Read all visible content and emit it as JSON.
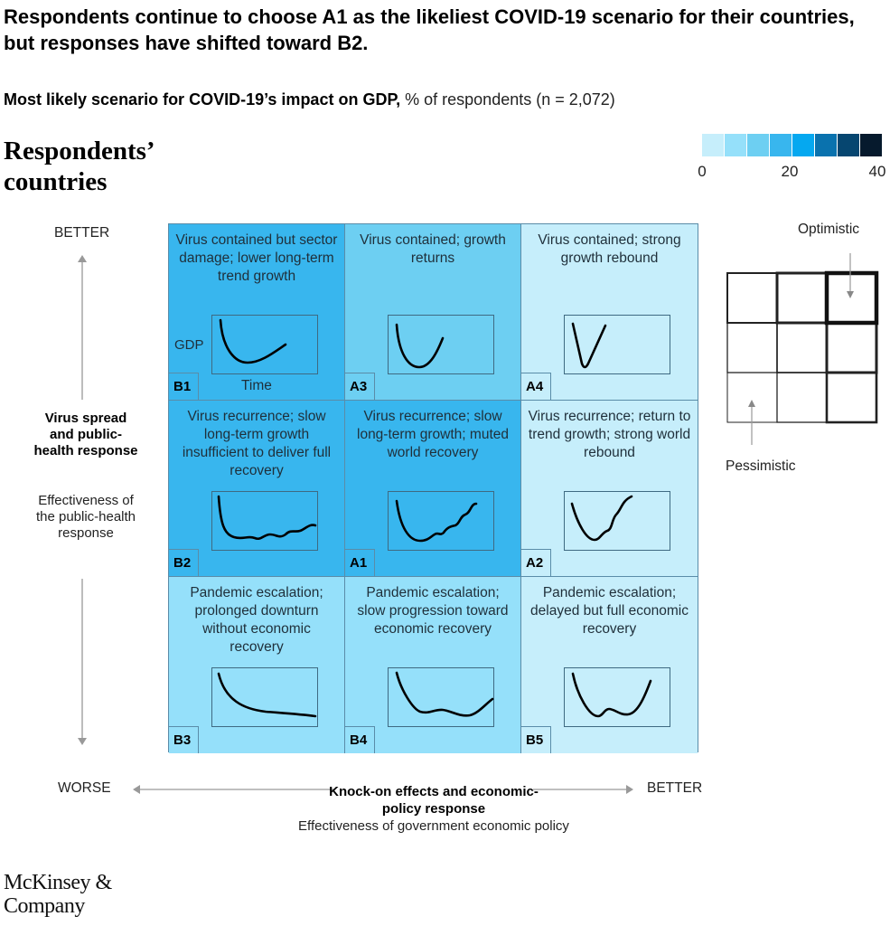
{
  "title": "Respondents continue to choose A1 as the likeliest COVID-19 scenario for their countries, but responses have shifted toward B2.",
  "subtitle_bold": "Most likely scenario for COVID-19’s impact on GDP,",
  "subtitle_rest": " % of respondents (n = 2,072)",
  "section_heading": "Respondents’ countries",
  "chart_data": {
    "type": "heatmap",
    "legend": {
      "range": [
        0,
        40
      ],
      "tick_labels": [
        "0",
        "20",
        "40"
      ],
      "bins": [
        [
          0,
          5
        ],
        [
          5,
          10
        ],
        [
          10,
          15
        ],
        [
          15,
          20
        ],
        [
          20,
          25
        ],
        [
          25,
          30
        ],
        [
          30,
          35
        ],
        [
          35,
          40
        ]
      ],
      "colors": [
        "#c6eefb",
        "#95e0fa",
        "#6dcff2",
        "#38b6ee",
        "#05a8f0",
        "#0a72ae",
        "#064670",
        "#061a2d"
      ]
    },
    "y_axis": {
      "top_label": "BETTER",
      "bottom_label": "WORSE",
      "title": "Virus spread and public-health response",
      "subtitle": "Effectiveness of the public-health response"
    },
    "x_axis": {
      "left_label": "WORSE",
      "right_label": "BETTER",
      "title": "Knock-on effects and economic-policy response",
      "subtitle": "Effectiveness of government economic policy"
    },
    "sparkline_axis_labels": {
      "y": "GDP",
      "x": "Time"
    },
    "cells": [
      {
        "id": "B1",
        "row": 0,
        "col": 0,
        "text": "Virus contained but sector damage; lower long-term trend growth",
        "value_bin": [
          15,
          20
        ],
        "color": "#38b6ee",
        "curve": "B1"
      },
      {
        "id": "A3",
        "row": 0,
        "col": 1,
        "text": "Virus contained; growth returns",
        "value_bin": [
          10,
          15
        ],
        "color": "#6dcff2",
        "curve": "A3"
      },
      {
        "id": "A4",
        "row": 0,
        "col": 2,
        "text": "Virus contained; strong growth rebound",
        "value_bin": [
          0,
          5
        ],
        "color": "#c6eefb",
        "curve": "A4"
      },
      {
        "id": "B2",
        "row": 1,
        "col": 0,
        "text": "Virus recurrence; slow long-term growth insufficient to deliver full recovery",
        "value_bin": [
          15,
          20
        ],
        "color": "#38b6ee",
        "curve": "B2"
      },
      {
        "id": "A1",
        "row": 1,
        "col": 1,
        "text": "Virus recurrence; slow long-term growth; muted world recovery",
        "value_bin": [
          15,
          20
        ],
        "color": "#38b6ee",
        "curve": "A1"
      },
      {
        "id": "A2",
        "row": 1,
        "col": 2,
        "text": "Virus recurrence; return to trend growth; strong world rebound",
        "value_bin": [
          0,
          5
        ],
        "color": "#c6eefb",
        "curve": "A2"
      },
      {
        "id": "B3",
        "row": 2,
        "col": 0,
        "text": "Pandemic escalation; prolonged downturn without economic recovery",
        "value_bin": [
          5,
          10
        ],
        "color": "#95e0fa",
        "curve": "B3"
      },
      {
        "id": "B4",
        "row": 2,
        "col": 1,
        "text": "Pandemic escalation; slow progression toward economic recovery",
        "value_bin": [
          5,
          10
        ],
        "color": "#95e0fa",
        "curve": "B4"
      },
      {
        "id": "B5",
        "row": 2,
        "col": 2,
        "text": "Pandemic escalation; delayed but full economic recovery",
        "value_bin": [
          0,
          5
        ],
        "color": "#c6eefb",
        "curve": "B5"
      }
    ]
  },
  "key": {
    "optimistic": "Optimistic",
    "pessimistic": "Pessimistic"
  },
  "logo": "McKinsey & Company"
}
